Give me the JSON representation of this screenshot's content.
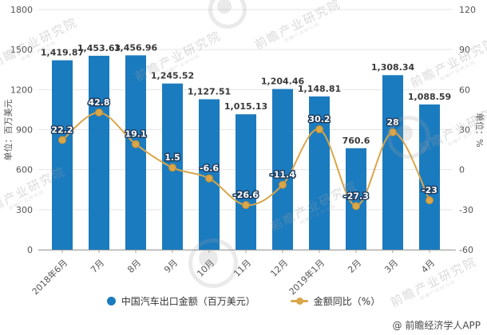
{
  "legend": {
    "series1_label": "中国汽车出口金额（百万美元）",
    "series2_label": "金额同比（%）"
  },
  "footer": {
    "credit": "@ 前瞻经济学人APP"
  },
  "watermark": {
    "text": "前瞻产业研究院",
    "logo": "qianzhan-circle-logo"
  },
  "colors": {
    "bar": "#1B7BBF",
    "line": "#D9A64A",
    "line_marker_stroke": "#C08F35",
    "line_label_fill": "#FFFFFF",
    "line_label_outline": "#1E3C5E",
    "bar_label": "#3A3A3A",
    "grid": "#E5E5E5",
    "axis": "#9B9B9B",
    "tick_text": "#555555"
  },
  "chart_data": {
    "type": "bar+line",
    "title": "",
    "grid": true,
    "legend_position": "bottom",
    "categories": [
      "2018年6月",
      "7月",
      "8月",
      "9月",
      "10月",
      "11月",
      "12月",
      "2019年1月",
      "2月",
      "3月",
      "4月"
    ],
    "series": [
      {
        "name": "中国汽车出口金额（百万美元）",
        "type": "bar",
        "axis": "left",
        "values": [
          1419.87,
          1453.63,
          1456.96,
          1245.52,
          1127.51,
          1015.13,
          1204.46,
          1148.81,
          760.6,
          1308.34,
          1088.59
        ],
        "labels": [
          "1,419.87",
          "1,453.63",
          "1,456.96",
          "1,245.52",
          "1,127.51",
          "1,015.13",
          "1,204.46",
          "1,148.81",
          "760.6",
          "1,308.34",
          "1,088.59"
        ]
      },
      {
        "name": "金额同比（%）",
        "type": "line",
        "axis": "right",
        "values": [
          22.2,
          42.8,
          19.1,
          1.5,
          -6.6,
          -26.6,
          -11.4,
          30.2,
          -27.3,
          28,
          -23
        ],
        "labels": [
          "22.2",
          "42.8",
          "19.1",
          "1.5",
          "-6.6",
          "-26.6",
          "-11.4",
          "30.2",
          "-27.3",
          "28",
          "-23"
        ]
      }
    ],
    "left_axis": {
      "label": "单位：百万美元",
      "min": 0,
      "max": 1800,
      "step": 300,
      "ticks": [
        "0",
        "300",
        "600",
        "900",
        "1200",
        "1500",
        "1800"
      ]
    },
    "right_axis": {
      "label": "单位：%",
      "min": -60,
      "max": 120,
      "step": 30,
      "ticks": [
        "-60",
        "-30",
        "0",
        "30",
        "60",
        "90",
        "120"
      ]
    }
  }
}
